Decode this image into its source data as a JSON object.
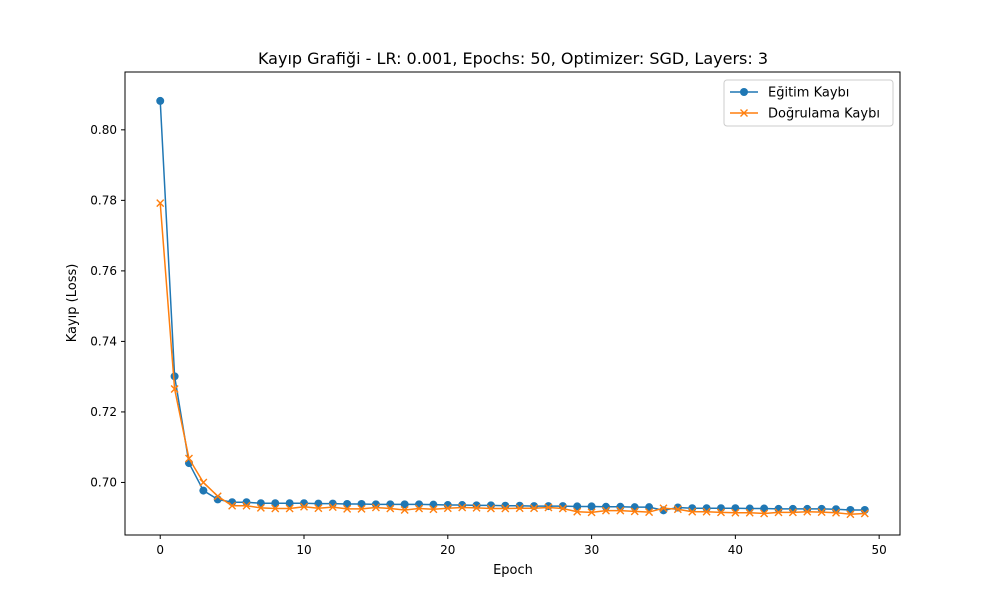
{
  "chart_data": {
    "type": "line",
    "title": "Kayıp Grafiği - LR: 0.001, Epochs: 50, Optimizer: SGD, Layers: 3",
    "xlabel": "Epoch",
    "ylabel": "Kayıp (Loss)",
    "xlim": [
      -2.45,
      51.45
    ],
    "ylim": [
      0.6851,
      0.8164
    ],
    "xticks": [
      0,
      10,
      20,
      30,
      40,
      50
    ],
    "xtick_labels": [
      "0",
      "10",
      "20",
      "30",
      "40",
      "50"
    ],
    "yticks": [
      0.7,
      0.72,
      0.74,
      0.76,
      0.78,
      0.8
    ],
    "ytick_labels": [
      "0.70",
      "0.72",
      "0.74",
      "0.76",
      "0.78",
      "0.80"
    ],
    "grid": false,
    "legend_position": "top-right",
    "x": [
      0,
      1,
      2,
      3,
      4,
      5,
      6,
      7,
      8,
      9,
      10,
      11,
      12,
      13,
      14,
      15,
      16,
      17,
      18,
      19,
      20,
      21,
      22,
      23,
      24,
      25,
      26,
      27,
      28,
      29,
      30,
      31,
      32,
      33,
      34,
      35,
      36,
      37,
      38,
      39,
      40,
      41,
      42,
      43,
      44,
      45,
      46,
      47,
      48,
      49
    ],
    "series": [
      {
        "name": "Eğitim Kaybı",
        "color": "#1f77b4",
        "marker": "circle",
        "values": [
          0.8082,
          0.7301,
          0.7055,
          0.6977,
          0.6952,
          0.6944,
          0.6944,
          0.6941,
          0.6941,
          0.6941,
          0.6941,
          0.694,
          0.694,
          0.6939,
          0.6939,
          0.6938,
          0.6938,
          0.6938,
          0.6938,
          0.6937,
          0.6936,
          0.6936,
          0.6935,
          0.6935,
          0.6934,
          0.6934,
          0.6933,
          0.6933,
          0.6933,
          0.6932,
          0.6932,
          0.6931,
          0.6931,
          0.693,
          0.693,
          0.6921,
          0.6929,
          0.6927,
          0.6927,
          0.6927,
          0.6927,
          0.6926,
          0.6926,
          0.6925,
          0.6925,
          0.6925,
          0.6925,
          0.6924,
          0.6922,
          0.6922
        ]
      },
      {
        "name": "Doğrulama Kaybı",
        "color": "#ff7f0e",
        "marker": "x",
        "values": [
          0.7792,
          0.7265,
          0.7068,
          0.7,
          0.6961,
          0.6934,
          0.6934,
          0.6928,
          0.6926,
          0.6926,
          0.6931,
          0.6927,
          0.693,
          0.6925,
          0.6925,
          0.6929,
          0.6926,
          0.6922,
          0.6926,
          0.6924,
          0.6927,
          0.6929,
          0.6928,
          0.6926,
          0.6926,
          0.6927,
          0.6927,
          0.6929,
          0.6926,
          0.6917,
          0.6915,
          0.692,
          0.692,
          0.6918,
          0.6916,
          0.6927,
          0.6924,
          0.6917,
          0.6917,
          0.6915,
          0.6914,
          0.6914,
          0.6912,
          0.6915,
          0.6915,
          0.6917,
          0.6916,
          0.6914,
          0.691,
          0.6912
        ]
      }
    ]
  }
}
